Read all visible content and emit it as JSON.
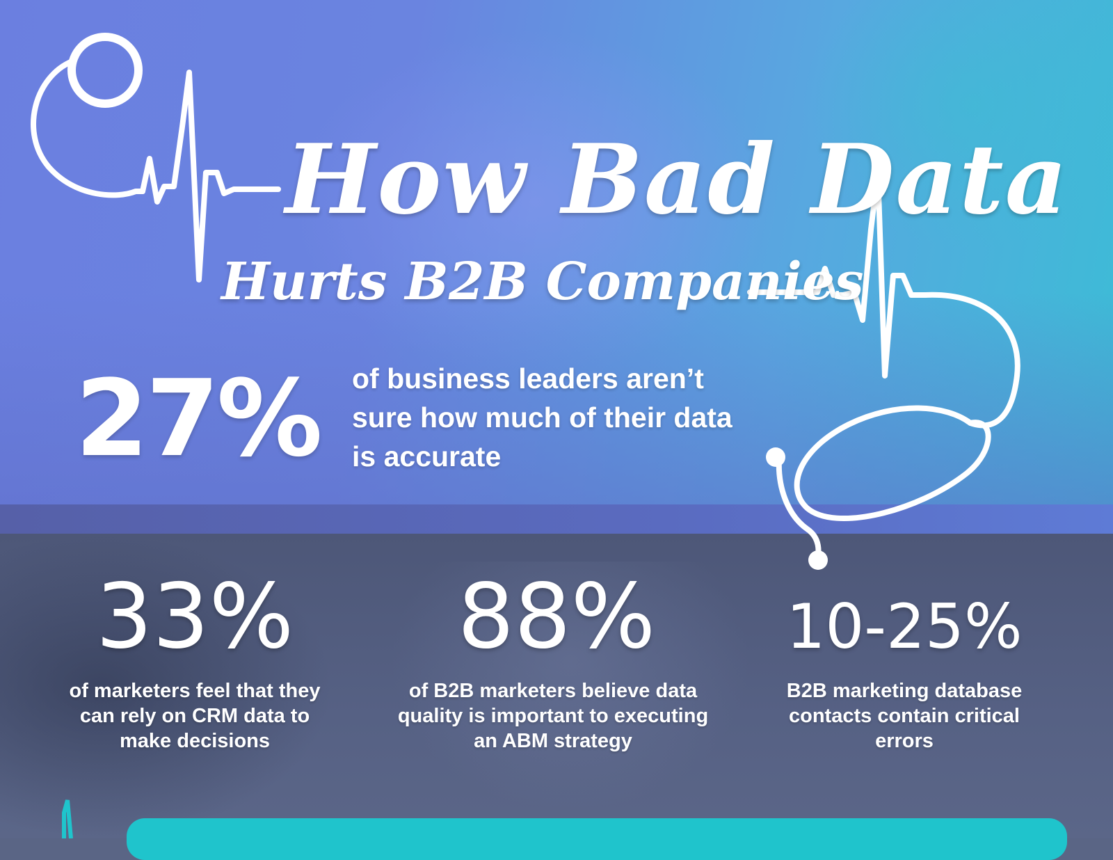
{
  "header": {
    "title": "How Bad Data",
    "subtitle": "Hurts B2B Companies"
  },
  "hero_stat": {
    "value": "27%",
    "description": "of business leaders aren’t sure how much of their data is accurate"
  },
  "stats": [
    {
      "value": "33%",
      "description": "of marketers feel that they can rely on CRM data to make decisions"
    },
    {
      "value": "88%",
      "description": "of B2B marketers believe data quality is important to executing an ABM strategy"
    },
    {
      "value": "10-25%",
      "description": "B2B marketing database contacts contain critical errors"
    }
  ],
  "icons": {
    "stethoscope": "stethoscope-icon",
    "heartbeat": "heartbeat-line-icon"
  },
  "colors": {
    "hero_gradient_start": "#6b7fe0",
    "hero_gradient_end": "#3cbcd6",
    "lower_background": "#566184",
    "accent_teal": "#1fc4cc",
    "text": "#ffffff"
  }
}
